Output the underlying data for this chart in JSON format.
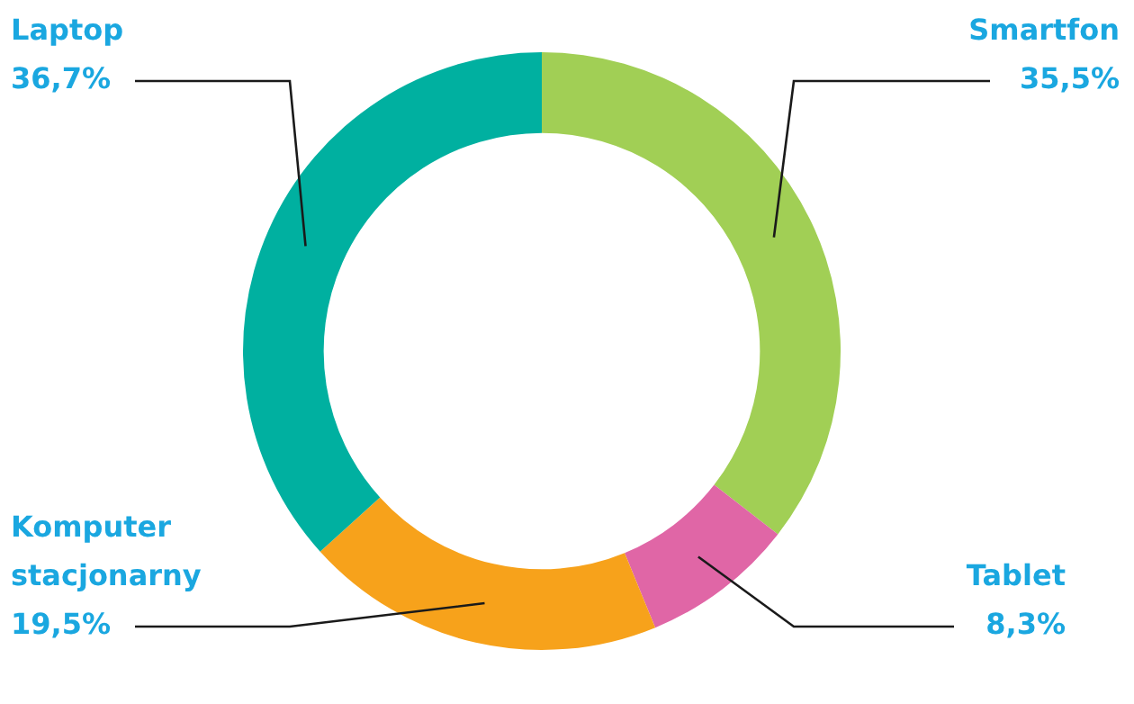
{
  "chart_data": {
    "type": "donut",
    "categories": [
      "Smartfon",
      "Tablet",
      "Komputer stacjonarny",
      "Laptop"
    ],
    "values": [
      35.5,
      8.3,
      19.5,
      36.7
    ],
    "colors": [
      "#a1cf55",
      "#e066a6",
      "#f7a21b",
      "#00b0a0"
    ],
    "value_labels": [
      "35,5%",
      "8,3%",
      "19,5%",
      "36,7%"
    ],
    "legend": false
  }
}
